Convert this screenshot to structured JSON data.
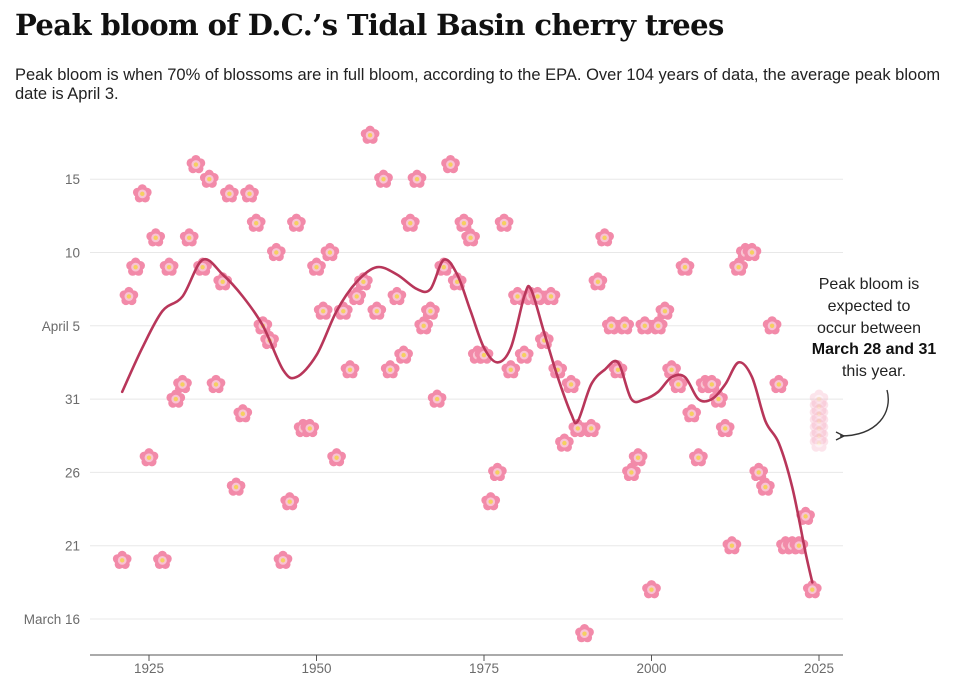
{
  "header": {
    "title": "Peak bloom of D.C.’s Tidal Basin cherry trees",
    "subtitle": "Peak bloom is when 70% of blossoms are in full bloom, according to the EPA. Over 104 years of data, the average peak bloom date is April 3."
  },
  "annotation": {
    "line1": "Peak bloom is",
    "line2": "expected to",
    "line3": "occur between",
    "line4_bold": "March 28 and 31",
    "line5": "this year."
  },
  "colors": {
    "blossom_outer": "#f28aa9",
    "blossom_inner": "#f9c3d3",
    "blossom_center": "#f5d061",
    "trend_line": "#b8365a",
    "gridline": "#e8e8e8",
    "axis": "#555555"
  },
  "icons": {
    "marker": "cherry-blossom-icon",
    "forecast": "faded-blossom-icon",
    "arrow": "curved-arrow-icon"
  },
  "chart_data": {
    "type": "scatter",
    "title": "Peak bloom of D.C.’s Tidal Basin cherry trees",
    "xlabel": "",
    "ylabel": "",
    "x_ticks": [
      1925,
      1950,
      1975,
      2000,
      2025
    ],
    "y_ticks": [
      {
        "label": "March 16",
        "day": 75
      },
      {
        "label": "21",
        "day": 80
      },
      {
        "label": "26",
        "day": 85
      },
      {
        "label": "31",
        "day": 90
      },
      {
        "label": "April 5",
        "day": 95
      },
      {
        "label": "10",
        "day": 100
      },
      {
        "label": "15",
        "day": 105
      }
    ],
    "xlim": [
      1915,
      2029
    ],
    "ylim_day_of_year": [
      73,
      109
    ],
    "grid": true,
    "series": [
      {
        "values": [
          [
            1921,
            79
          ],
          [
            1922,
            97
          ],
          [
            1923,
            99
          ],
          [
            1924,
            104
          ],
          [
            1925,
            86
          ],
          [
            1926,
            101
          ],
          [
            1927,
            79
          ],
          [
            1928,
            99
          ],
          [
            1929,
            90
          ],
          [
            1930,
            91
          ],
          [
            1931,
            101
          ],
          [
            1932,
            106
          ],
          [
            1933,
            99
          ],
          [
            1934,
            105
          ],
          [
            1935,
            91
          ],
          [
            1936,
            98
          ],
          [
            1937,
            104
          ],
          [
            1938,
            84
          ],
          [
            1939,
            89
          ],
          [
            1940,
            104
          ],
          [
            1941,
            102
          ],
          [
            1942,
            95
          ],
          [
            1943,
            94
          ],
          [
            1944,
            100
          ],
          [
            1945,
            79
          ],
          [
            1946,
            83
          ],
          [
            1947,
            102
          ],
          [
            1948,
            88
          ],
          [
            1949,
            88
          ],
          [
            1950,
            99
          ],
          [
            1951,
            96
          ],
          [
            1952,
            100
          ],
          [
            1953,
            86
          ],
          [
            1954,
            96
          ],
          [
            1955,
            92
          ],
          [
            1956,
            97
          ],
          [
            1957,
            98
          ],
          [
            1958,
            108
          ],
          [
            1959,
            96
          ],
          [
            1960,
            105
          ],
          [
            1961,
            92
          ],
          [
            1962,
            97
          ],
          [
            1963,
            93
          ],
          [
            1964,
            102
          ],
          [
            1965,
            105
          ],
          [
            1966,
            95
          ],
          [
            1967,
            96
          ],
          [
            1968,
            90
          ],
          [
            1969,
            99
          ],
          [
            1970,
            106
          ],
          [
            1971,
            98
          ],
          [
            1972,
            102
          ],
          [
            1973,
            101
          ],
          [
            1974,
            93
          ],
          [
            1975,
            93
          ],
          [
            1976,
            83
          ],
          [
            1977,
            85
          ],
          [
            1978,
            102
          ],
          [
            1979,
            92
          ],
          [
            1980,
            97
          ],
          [
            1981,
            93
          ],
          [
            1982,
            97
          ],
          [
            1983,
            97
          ],
          [
            1984,
            94
          ],
          [
            1985,
            97
          ],
          [
            1986,
            92
          ],
          [
            1987,
            87
          ],
          [
            1988,
            91
          ],
          [
            1989,
            88
          ],
          [
            1990,
            74
          ],
          [
            1991,
            88
          ],
          [
            1992,
            98
          ],
          [
            1993,
            101
          ],
          [
            1994,
            95
          ],
          [
            1995,
            92
          ],
          [
            1996,
            95
          ],
          [
            1997,
            85
          ],
          [
            1998,
            86
          ],
          [
            1999,
            95
          ],
          [
            2000,
            77
          ],
          [
            2001,
            95
          ],
          [
            2002,
            96
          ],
          [
            2003,
            92
          ],
          [
            2004,
            91
          ],
          [
            2005,
            99
          ],
          [
            2006,
            89
          ],
          [
            2007,
            86
          ],
          [
            2008,
            91
          ],
          [
            2009,
            91
          ],
          [
            2010,
            90
          ],
          [
            2011,
            88
          ],
          [
            2012,
            80
          ],
          [
            2013,
            99
          ],
          [
            2014,
            100
          ],
          [
            2015,
            100
          ],
          [
            2016,
            85
          ],
          [
            2017,
            84
          ],
          [
            2018,
            95
          ],
          [
            2019,
            91
          ],
          [
            2020,
            80
          ],
          [
            2021,
            80
          ],
          [
            2022,
            80
          ],
          [
            2023,
            82
          ],
          [
            2024,
            77
          ]
        ]
      },
      {
        "type": "line",
        "values": [
          [
            1921,
            90.5
          ],
          [
            1924,
            93.5
          ],
          [
            1927,
            96
          ],
          [
            1930,
            97
          ],
          [
            1933,
            99.5
          ],
          [
            1936,
            98.5
          ],
          [
            1939,
            97
          ],
          [
            1942,
            95
          ],
          [
            1945,
            92
          ],
          [
            1947,
            91.5
          ],
          [
            1950,
            93
          ],
          [
            1953,
            96
          ],
          [
            1956,
            98
          ],
          [
            1959,
            99
          ],
          [
            1962,
            98.5
          ],
          [
            1965,
            97.5
          ],
          [
            1967,
            97.5
          ],
          [
            1969,
            99.5
          ],
          [
            1971,
            98.5
          ],
          [
            1973,
            96
          ],
          [
            1975,
            93.5
          ],
          [
            1977,
            92.5
          ],
          [
            1979,
            93.5
          ],
          [
            1981,
            97
          ],
          [
            1982,
            97.5
          ],
          [
            1984,
            94.5
          ],
          [
            1986,
            91.5
          ],
          [
            1988,
            89
          ],
          [
            1989,
            88.5
          ],
          [
            1991,
            91
          ],
          [
            1993,
            92
          ],
          [
            1995,
            92.5
          ],
          [
            1997,
            90
          ],
          [
            1999,
            90
          ],
          [
            2001,
            90.5
          ],
          [
            2003,
            91.5
          ],
          [
            2005,
            91.5
          ],
          [
            2007,
            90
          ],
          [
            2009,
            90
          ],
          [
            2011,
            91
          ],
          [
            2013,
            92.5
          ],
          [
            2015,
            91.5
          ],
          [
            2017,
            88.5
          ],
          [
            2019,
            87
          ],
          [
            2021,
            84
          ],
          [
            2023,
            79.5
          ],
          [
            2024,
            77.5
          ]
        ]
      }
    ],
    "forecast": {
      "year": 2025,
      "start_day": 87,
      "end_day": 90
    }
  }
}
